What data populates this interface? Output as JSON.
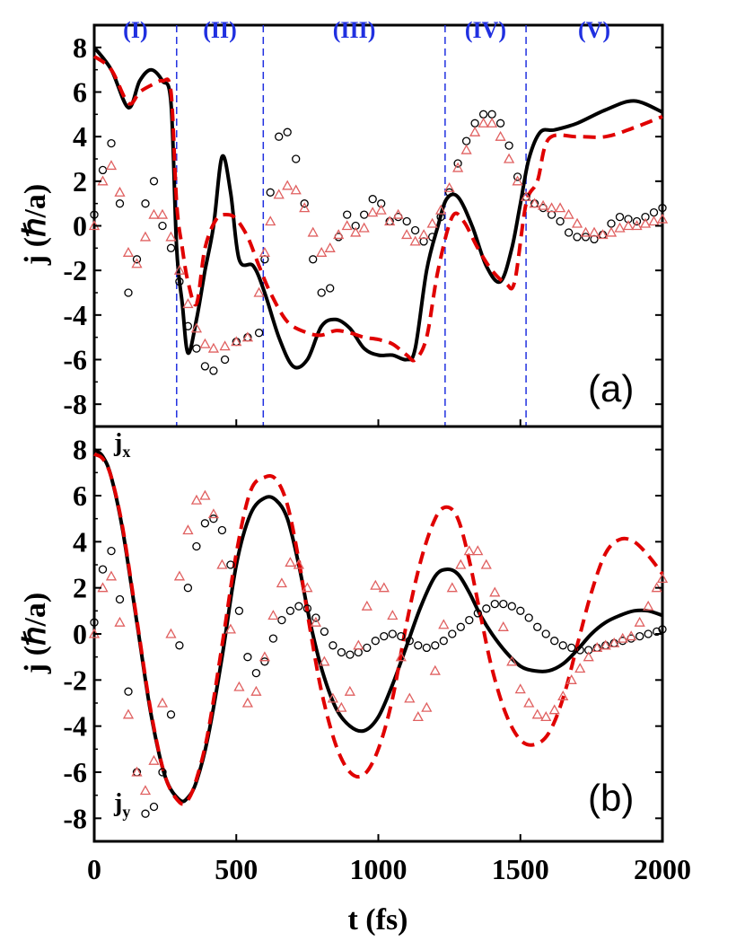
{
  "chart_data": [
    {
      "type": "line",
      "panel_label": "(a)",
      "xlabel": "t (fs)",
      "ylabel": "j (ℏ/a)",
      "xlim": [
        0,
        2000
      ],
      "ylim": [
        -9,
        9
      ],
      "yticks": [
        8,
        6,
        4,
        2,
        0,
        -2,
        -4,
        -6,
        -8
      ],
      "ytick_labels": [
        "8",
        "6",
        "4",
        "2",
        "0",
        "-2",
        "-4",
        "-6",
        "-8"
      ],
      "regions": {
        "boundaries": [
          290,
          595,
          1235,
          1520
        ],
        "labels": [
          "(I)",
          "(II)",
          "(III)",
          "(IV)",
          "(V)"
        ]
      },
      "series": [
        {
          "name": "jx black solid",
          "style": "solid",
          "color": "#000000",
          "x": [
            0,
            60,
            120,
            160,
            200,
            240,
            270,
            290,
            310,
            330,
            360,
            390,
            420,
            450,
            480,
            510,
            560,
            600,
            650,
            700,
            750,
            800,
            850,
            900,
            950,
            1000,
            1050,
            1100,
            1130,
            1170,
            1210,
            1240,
            1280,
            1330,
            1380,
            1430,
            1470,
            1500,
            1530,
            1570,
            1620,
            1700,
            1800,
            1900,
            2000
          ],
          "y": [
            8,
            7,
            5.3,
            6.5,
            7,
            6.5,
            5.5,
            -1,
            -3.5,
            -5.7,
            -4.2,
            -2,
            0,
            3.1,
            1.5,
            -1.5,
            -1.8,
            -3,
            -5,
            -6.3,
            -6,
            -4.5,
            -4.2,
            -4.6,
            -5.5,
            -5.8,
            -5.8,
            -6,
            -5.5,
            -2,
            0,
            1.2,
            1.3,
            0,
            -1.8,
            -2.5,
            -1,
            1,
            3,
            4.2,
            4.3,
            4.6,
            5.2,
            5.6,
            5.1
          ]
        },
        {
          "name": "jx red dashed",
          "style": "dashed",
          "color": "#e00000",
          "x": [
            0,
            60,
            120,
            160,
            200,
            240,
            270,
            290,
            310,
            330,
            360,
            390,
            430,
            470,
            500,
            540,
            580,
            620,
            680,
            750,
            800,
            850,
            900,
            950,
            1000,
            1050,
            1100,
            1130,
            1170,
            1210,
            1260,
            1300,
            1350,
            1400,
            1450,
            1480,
            1520,
            1560,
            1600,
            1700,
            1800,
            1900,
            2000
          ],
          "y": [
            7.6,
            7,
            5.5,
            6,
            6.3,
            6.5,
            6,
            1,
            -1,
            -2.5,
            -3.5,
            -1,
            0.3,
            0.5,
            0.3,
            -0.5,
            -1.8,
            -3,
            -4.3,
            -4.8,
            -4.9,
            -4.7,
            -4.8,
            -5,
            -5.1,
            -5.3,
            -5.8,
            -6,
            -5,
            -2,
            0.4,
            0.2,
            -1,
            -2,
            -2.6,
            -2.5,
            1,
            2,
            3.9,
            4,
            4,
            4.4,
            4.9
          ]
        },
        {
          "name": "jy black circles",
          "style": "circles",
          "color": "#000000",
          "x": [
            0,
            30,
            60,
            90,
            120,
            150,
            180,
            210,
            240,
            270,
            300,
            330,
            360,
            390,
            420,
            460,
            500,
            540,
            580,
            600,
            620,
            650,
            680,
            710,
            740,
            770,
            800,
            830,
            860,
            890,
            920,
            950,
            980,
            1010,
            1040,
            1070,
            1100,
            1130,
            1160,
            1190,
            1220,
            1250,
            1280,
            1310,
            1340,
            1370,
            1400,
            1430,
            1460,
            1490,
            1520,
            1550,
            1580,
            1610,
            1640,
            1670,
            1700,
            1730,
            1760,
            1790,
            1820,
            1850,
            1880,
            1910,
            1940,
            1970,
            2000
          ],
          "y": [
            0.5,
            2.5,
            3.7,
            1,
            -3,
            -1.5,
            1,
            2,
            0,
            -1,
            -2.5,
            -4.5,
            -5.5,
            -6.3,
            -6.5,
            -6,
            -5.2,
            -5,
            -4.8,
            -1.5,
            1.5,
            4,
            4.2,
            3,
            1,
            -1.5,
            -3,
            -2.8,
            -0.5,
            0.5,
            0,
            0.5,
            1.2,
            1,
            0.2,
            0.4,
            0.2,
            -0.2,
            -0.7,
            -0.5,
            0.4,
            1.5,
            2.8,
            3.8,
            4.6,
            5,
            5,
            4.6,
            3.6,
            2.2,
            1.3,
            1,
            0.8,
            0.5,
            0.2,
            -0.3,
            -0.5,
            -0.5,
            -0.6,
            -0.4,
            0.1,
            0.4,
            0.3,
            0.2,
            0.4,
            0.6,
            0.8
          ]
        },
        {
          "name": "jy red triangles",
          "style": "triangles",
          "color": "#e06060",
          "x": [
            0,
            30,
            60,
            90,
            120,
            150,
            180,
            210,
            240,
            270,
            300,
            330,
            360,
            390,
            420,
            460,
            500,
            540,
            580,
            600,
            620,
            650,
            680,
            710,
            740,
            770,
            800,
            830,
            860,
            890,
            920,
            950,
            980,
            1010,
            1040,
            1070,
            1100,
            1130,
            1160,
            1190,
            1220,
            1250,
            1280,
            1310,
            1340,
            1370,
            1400,
            1430,
            1460,
            1490,
            1520,
            1550,
            1580,
            1610,
            1640,
            1670,
            1700,
            1730,
            1760,
            1790,
            1820,
            1850,
            1880,
            1910,
            1940,
            1970,
            2000
          ],
          "y": [
            0,
            2,
            2.7,
            1.5,
            -1.2,
            -1.7,
            -0.5,
            0.5,
            0.5,
            -0.5,
            -2,
            -3.5,
            -4.6,
            -5.3,
            -5.5,
            -5.4,
            -5.2,
            -5,
            -3,
            -1.2,
            0.2,
            1.4,
            1.8,
            1.6,
            0.8,
            -0.3,
            -1.2,
            -1,
            -0.4,
            0,
            -0.3,
            -0.1,
            0.6,
            0.7,
            0.2,
            0.5,
            -0.4,
            -0.7,
            -0.4,
            0.1,
            0.7,
            1.7,
            2.6,
            3.4,
            4.2,
            4.6,
            4.6,
            4,
            3,
            2,
            1.3,
            1,
            0.9,
            0.8,
            0.8,
            0.5,
            0.1,
            -0.3,
            -0.3,
            -0.4,
            -0.3,
            -0.1,
            0,
            0,
            0.1,
            0.2,
            0.3
          ]
        }
      ]
    },
    {
      "type": "line",
      "panel_label": "(b)",
      "xlabel": "t (fs)",
      "ylabel": "j (ℏ/a)",
      "xlim": [
        0,
        2000
      ],
      "ylim": [
        -9,
        9
      ],
      "xticks": [
        0,
        500,
        1000,
        1500,
        2000
      ],
      "xtick_labels": [
        "0",
        "500",
        "1000",
        "1500",
        "2000"
      ],
      "yticks": [
        8,
        6,
        4,
        2,
        0,
        -2,
        -4,
        -6,
        -8
      ],
      "ytick_labels": [
        "8",
        "6",
        "4",
        "2",
        "0",
        "-2",
        "-4",
        "-6",
        "-8"
      ],
      "annotations": {
        "jx": {
          "main": "j",
          "sub": "x"
        },
        "jy": {
          "main": "j",
          "sub": "y"
        }
      },
      "series": [
        {
          "name": "jx black solid",
          "style": "solid",
          "color": "#000000",
          "x": [
            0,
            30,
            60,
            100,
            150,
            200,
            250,
            300,
            330,
            360,
            400,
            450,
            500,
            550,
            600,
            640,
            680,
            720,
            760,
            800,
            850,
            900,
            950,
            1000,
            1050,
            1100,
            1150,
            1200,
            1240,
            1280,
            1320,
            1360,
            1400,
            1450,
            1500,
            1550,
            1600,
            1650,
            1700,
            1750,
            1800,
            1850,
            1900,
            1950,
            2000
          ],
          "y": [
            8,
            7.7,
            6.8,
            4.5,
            0.5,
            -3.5,
            -6.2,
            -7.2,
            -7.1,
            -6.4,
            -4.5,
            -1,
            3,
            5.2,
            5.9,
            5.8,
            5,
            3,
            0.5,
            -1.5,
            -3.2,
            -4,
            -4.2,
            -3.6,
            -2.2,
            -0.5,
            1.2,
            2.5,
            2.8,
            2.6,
            1.8,
            0.8,
            0,
            -0.8,
            -1.4,
            -1.6,
            -1.6,
            -1.3,
            -0.7,
            0,
            0.5,
            0.8,
            1,
            1,
            0.8
          ]
        },
        {
          "name": "jx red dashed",
          "style": "dashed",
          "color": "#e00000",
          "x": [
            0,
            30,
            60,
            100,
            150,
            200,
            250,
            300,
            330,
            360,
            400,
            450,
            500,
            550,
            600,
            640,
            680,
            720,
            760,
            800,
            850,
            900,
            950,
            1000,
            1050,
            1100,
            1150,
            1200,
            1240,
            1280,
            1320,
            1360,
            1400,
            1450,
            1500,
            1550,
            1600,
            1650,
            1700,
            1750,
            1800,
            1850,
            1900,
            1950,
            2000
          ],
          "y": [
            7.8,
            7.6,
            6.8,
            4.6,
            0.6,
            -3.4,
            -6.2,
            -7.3,
            -7.2,
            -6.3,
            -4.3,
            -0.5,
            3.5,
            6.2,
            6.8,
            6.7,
            5.6,
            3.2,
            0.2,
            -2.5,
            -4.8,
            -6,
            -6.1,
            -5,
            -2.8,
            0.5,
            3.2,
            5,
            5.5,
            5,
            3.2,
            0.8,
            -1.5,
            -3.5,
            -4.6,
            -4.8,
            -4.3,
            -2.8,
            -0.5,
            1.8,
            3.5,
            4.1,
            4,
            3.4,
            2.6
          ]
        },
        {
          "name": "jy black circles",
          "style": "circles",
          "color": "#000000",
          "x": [
            0,
            30,
            60,
            90,
            120,
            150,
            180,
            210,
            240,
            270,
            300,
            330,
            360,
            390,
            420,
            450,
            480,
            510,
            540,
            570,
            600,
            630,
            660,
            690,
            720,
            750,
            780,
            810,
            840,
            870,
            900,
            930,
            960,
            990,
            1020,
            1050,
            1080,
            1110,
            1140,
            1170,
            1200,
            1230,
            1260,
            1290,
            1320,
            1350,
            1380,
            1410,
            1440,
            1470,
            1500,
            1530,
            1560,
            1590,
            1620,
            1650,
            1680,
            1710,
            1740,
            1770,
            1800,
            1830,
            1860,
            1890,
            1920,
            1950,
            1980,
            2000
          ],
          "y": [
            0.5,
            2.8,
            3.6,
            1.5,
            -2.5,
            -6,
            -7.8,
            -7.5,
            -6,
            -3.5,
            -0.5,
            2,
            3.8,
            4.8,
            5,
            4.5,
            3,
            1,
            -1,
            -1.7,
            -1.2,
            -0.2,
            0.6,
            1,
            1.2,
            1.1,
            0.7,
            0.1,
            -0.5,
            -0.8,
            -0.9,
            -0.8,
            -0.6,
            -0.3,
            -0.1,
            0,
            -0.1,
            -0.3,
            -0.5,
            -0.6,
            -0.5,
            -0.3,
            0,
            0.3,
            0.6,
            0.9,
            1.1,
            1.3,
            1.3,
            1.2,
            1,
            0.7,
            0.3,
            0,
            -0.3,
            -0.5,
            -0.6,
            -0.7,
            -0.7,
            -0.6,
            -0.5,
            -0.4,
            -0.3,
            -0.2,
            -0.1,
            0,
            0.1,
            0.2
          ]
        },
        {
          "name": "jy red triangles",
          "style": "triangles",
          "color": "#e06060",
          "x": [
            0,
            30,
            60,
            90,
            120,
            150,
            180,
            210,
            240,
            270,
            300,
            330,
            360,
            390,
            420,
            450,
            480,
            510,
            540,
            570,
            600,
            630,
            660,
            690,
            720,
            750,
            780,
            810,
            840,
            870,
            900,
            930,
            960,
            990,
            1020,
            1050,
            1080,
            1110,
            1140,
            1170,
            1200,
            1230,
            1260,
            1290,
            1320,
            1350,
            1380,
            1410,
            1440,
            1470,
            1500,
            1530,
            1560,
            1590,
            1620,
            1650,
            1680,
            1710,
            1740,
            1770,
            1800,
            1830,
            1860,
            1890,
            1920,
            1950,
            1980,
            2000
          ],
          "y": [
            0,
            2,
            2.5,
            0.5,
            -3.5,
            -6,
            -6.8,
            -5.5,
            -3,
            0,
            2.5,
            4.5,
            5.8,
            6,
            5.2,
            3,
            0.2,
            -2.3,
            -3,
            -2.5,
            -1,
            0.8,
            2.2,
            3.1,
            3,
            2,
            0.5,
            -1.2,
            -2.8,
            -3.2,
            -2.5,
            -0.5,
            1.2,
            2.1,
            2,
            0.8,
            -1,
            -2.8,
            -3.6,
            -3.2,
            -1.6,
            0.4,
            2,
            3,
            3.6,
            3.6,
            3,
            1.8,
            0.3,
            -1.2,
            -2.4,
            -3,
            -3.5,
            -3.6,
            -3.3,
            -2.7,
            -2,
            -1.5,
            -1,
            -0.6,
            -0.5,
            -0.4,
            -0.2,
            -0.1,
            0.5,
            1.2,
            2,
            2.4
          ]
        }
      ]
    }
  ]
}
